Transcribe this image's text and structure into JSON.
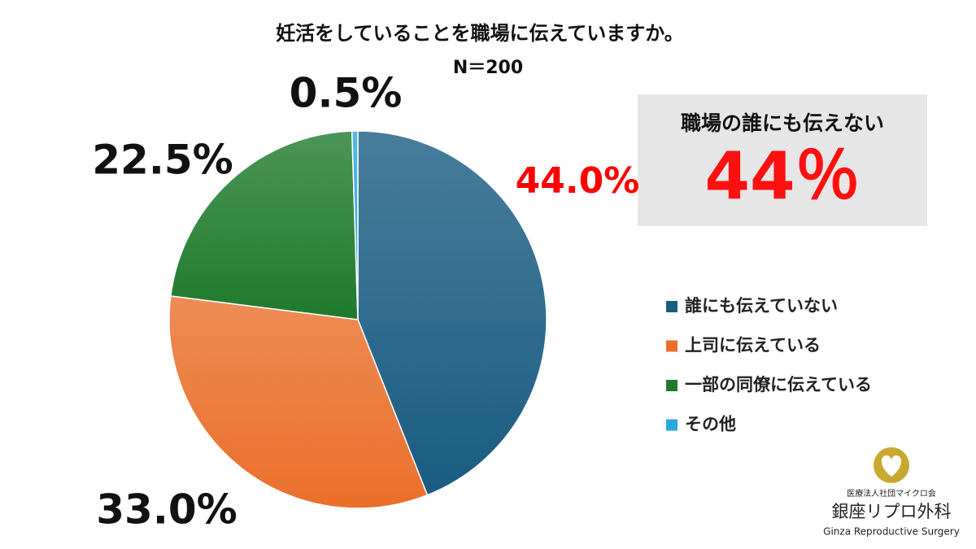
{
  "chart_data": {
    "type": "pie",
    "title": "妊活をしていることを職場に伝えていますか。",
    "subtitle": "N＝200",
    "categories": [
      "誰にも伝えていない",
      "上司に伝えている",
      "一部の同僚に伝えている",
      "その他"
    ],
    "values": [
      44.0,
      33.0,
      22.5,
      0.5
    ],
    "value_labels": [
      "44.0%",
      "33.0%",
      "22.5%",
      "0.5%"
    ],
    "colors": [
      "#1a5c82",
      "#ea6f2a",
      "#1f7a2c",
      "#2ba6de"
    ],
    "label_colors": [
      "#ff0000",
      "#111111",
      "#111111",
      "#111111"
    ],
    "legend": "right",
    "annotation": {
      "heading": "職場の誰にも伝えない",
      "value": "44％"
    },
    "logo": {
      "org": "医療法人社団マイクロ会",
      "name": "銀座リプロ外科",
      "english": "Ginza Reproductive Surgery"
    }
  }
}
